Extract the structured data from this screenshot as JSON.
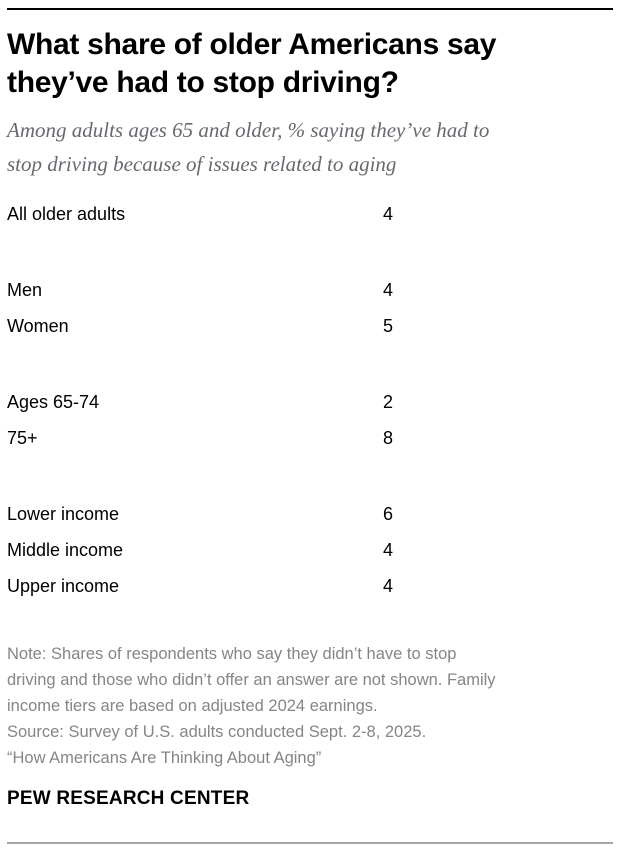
{
  "header": {
    "title_lines": [
      "What share of older Americans say",
      "they’ve had to stop driving?"
    ],
    "subtitle_lines": [
      "Among adults ages 65 and older, % saying they’ve had to",
      "stop driving because of issues related to aging"
    ]
  },
  "table": {
    "groups": [
      {
        "rows": [
          {
            "label": "All older adults",
            "value": "4"
          }
        ]
      },
      {
        "rows": [
          {
            "label": "Men",
            "value": "4"
          },
          {
            "label": "Women",
            "value": "5"
          }
        ]
      },
      {
        "rows": [
          {
            "label": "Ages 65-74",
            "value": "2"
          },
          {
            "label": "75+",
            "value": "8"
          }
        ]
      },
      {
        "rows": [
          {
            "label": "Lower income",
            "value": "6"
          },
          {
            "label": "Middle income",
            "value": "4"
          },
          {
            "label": "Upper income",
            "value": "4"
          }
        ]
      }
    ]
  },
  "footnote": {
    "note_lines": [
      "Note: Shares of respondents who say they didn’t have to stop",
      "driving and those who didn’t offer an answer are not shown. Family",
      "income tiers are based on adjusted 2024 earnings."
    ],
    "source_line": "Source: Survey of U.S. adults conducted Sept. 2-8, 2025.",
    "report_line": "“How Americans Are Thinking About Aging”"
  },
  "footer": {
    "brand": "PEW RESEARCH CENTER"
  },
  "colors": {
    "title_text": "#000000",
    "subtitle_text": "#66696e",
    "row_text": "#000000",
    "footnote_text": "#858588",
    "top_rule": "#000000",
    "bottom_rule": "#a6a6a6",
    "background": "#ffffff"
  },
  "chart_data": {
    "type": "table",
    "title": "What share of older Americans say they’ve had to stop driving?",
    "subtitle": "Among adults ages 65 and older, % saying they’ve had to stop driving because of issues related to aging",
    "unit": "% of adults ages 65 and older",
    "categories": [
      "All older adults",
      "Men",
      "Women",
      "Ages 65-74",
      "75+",
      "Lower income",
      "Middle income",
      "Upper income"
    ],
    "values": [
      4,
      4,
      5,
      2,
      8,
      6,
      4,
      4
    ],
    "group_breaks": [
      [
        "All older adults"
      ],
      [
        "Men",
        "Women"
      ],
      [
        "Ages 65-74",
        "75+"
      ],
      [
        "Lower income",
        "Middle income",
        "Upper income"
      ]
    ],
    "note": "Note: Shares of respondents who say they didn’t have to stop driving and those who didn’t offer an answer are not shown. Family income tiers are based on adjusted 2024 earnings.",
    "source": "Source: Survey of U.S. adults conducted Sept. 2-8, 2025. “How Americans Are Thinking About Aging”",
    "branding": "PEW RESEARCH CENTER"
  }
}
